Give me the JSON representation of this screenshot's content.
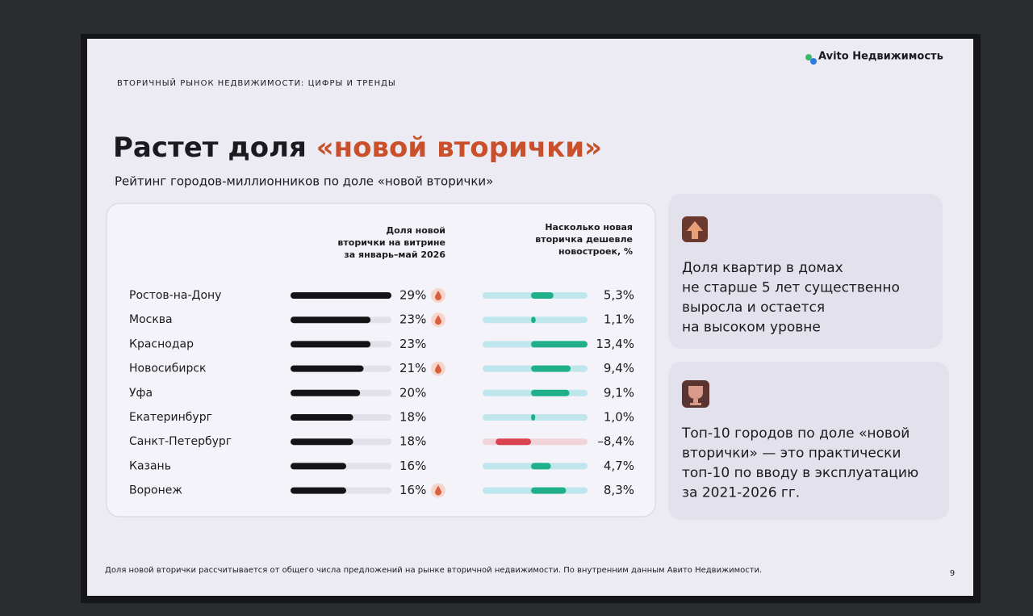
{
  "header": {
    "section": "ВТОРИЧНЫЙ РЫНОК НЕДВИЖИМОСТИ: ЦИФРЫ И ТРЕНДЫ",
    "logo": "Avito Недвижимость",
    "title": "Растет доля ",
    "title_highlight": "«новой вторички»",
    "subtitle": "Рейтинг городов-миллионников по доле «новой вторички»"
  },
  "chart_data": {
    "type": "bar",
    "categories": [
      "Ростов-на-Дону",
      "Москва",
      "Краснодар",
      "Новосибирск",
      "Уфа",
      "Екатеринбург",
      "Санкт-Петербург",
      "Казань",
      "Воронеж"
    ],
    "series": [
      {
        "name": [
          "Доля новой",
          "вторички на витрине",
          "за январь–май 2026"
        ],
        "color": "#141416",
        "xlim": [
          0,
          29
        ],
        "values": [
          29,
          23,
          23,
          21,
          20,
          18,
          18,
          16,
          16
        ],
        "value_labels": [
          "29%",
          "23%",
          "23%",
          "21%",
          "20%",
          "18%",
          "18%",
          "16%",
          "16%"
        ],
        "flags": [
          true,
          true,
          false,
          true,
          false,
          false,
          false,
          false,
          true
        ]
      },
      {
        "name": [
          "Насколько новая",
          "вторичка дешевле",
          "новостроек, %"
        ],
        "color": "#1fb08a",
        "negative_color": "#d9424e",
        "xlim": [
          -11.5,
          13.4
        ],
        "values": [
          5.3,
          1.1,
          13.4,
          9.4,
          9.1,
          1.0,
          -8.4,
          4.7,
          8.3
        ],
        "value_labels": [
          "5,3%",
          "1,1%",
          "13,4%",
          "9,4%",
          "9,1%",
          "1,0%",
          "–8,4%",
          "4,7%",
          "8,3%"
        ]
      }
    ]
  },
  "cards": [
    {
      "lines": [
        "Доля квартир в домах",
        "не старше 5 лет существенно",
        "выросла и остается",
        "на высоком уровне"
      ]
    },
    {
      "lines": [
        "Топ-10 городов по доле «новой",
        "вторички» — это практически",
        "топ-10 по вводу в эксплуатацию",
        "за 2021-2026 гг."
      ]
    }
  ],
  "footer": {
    "note": "Доля новой вторички рассчитывается от общего числа предложений на рынке вторичной недвижимости. По внутренним данным Авито Недвижимости.",
    "page": "9"
  }
}
